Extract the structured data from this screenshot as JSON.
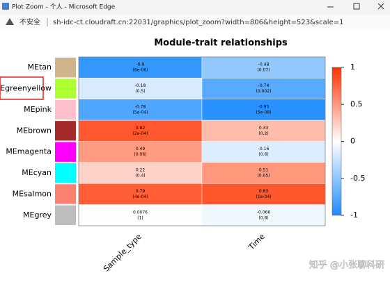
{
  "window": {
    "title": "Plot Zoom - 个人 - Microsoft Edge"
  },
  "address": {
    "warning": "不安全",
    "url": "sh-idc-ct.cloudraft.cn:22031/graphics/plot_zoom?width=806&height=523&scale=1"
  },
  "watermark": "知乎 @小张聊科研",
  "chart_data": {
    "type": "heatmap",
    "title": "Module-trait relationships",
    "rows": [
      "MEtan",
      "MEgreenyellow",
      "MEpink",
      "MEbrown",
      "MEmagenta",
      "MEcyan",
      "MEsalmon",
      "MEgrey"
    ],
    "row_colors": [
      "#d2b48c",
      "#adff2f",
      "#ffc0cb",
      "#a52a2a",
      "#ff00ff",
      "#00ffff",
      "#fa8072",
      "#bebebe"
    ],
    "columns": [
      "Sample_type",
      "Time"
    ],
    "values": [
      [
        -0.9,
        -0.48
      ],
      [
        -0.18,
        -0.74
      ],
      [
        -0.78,
        -0.95
      ],
      [
        0.82,
        0.33
      ],
      [
        0.49,
        -0.16
      ],
      [
        0.22,
        0.51
      ],
      [
        0.79,
        0.83
      ],
      [
        0.0076,
        -0.066
      ]
    ],
    "pvalue_labels": [
      [
        "(6e-06)",
        "(0.07)"
      ],
      [
        "(0.5)",
        "(0.002)"
      ],
      [
        "(5e-04)",
        "(5e-08)"
      ],
      [
        "(2e-04)",
        "(0.2)"
      ],
      [
        "(0.06)",
        "(0.6)"
      ],
      [
        "(0.4)",
        "(0.05)"
      ],
      [
        "(4e-04)",
        "(1e-04)"
      ],
      [
        "(1)",
        "(0.8)"
      ]
    ],
    "zlim": [
      -1,
      1
    ],
    "zticks": [
      1,
      0.5,
      0,
      -0.5,
      -1
    ],
    "colormap": [
      "#1e8cff",
      "#ffffff",
      "#ff3300"
    ]
  }
}
